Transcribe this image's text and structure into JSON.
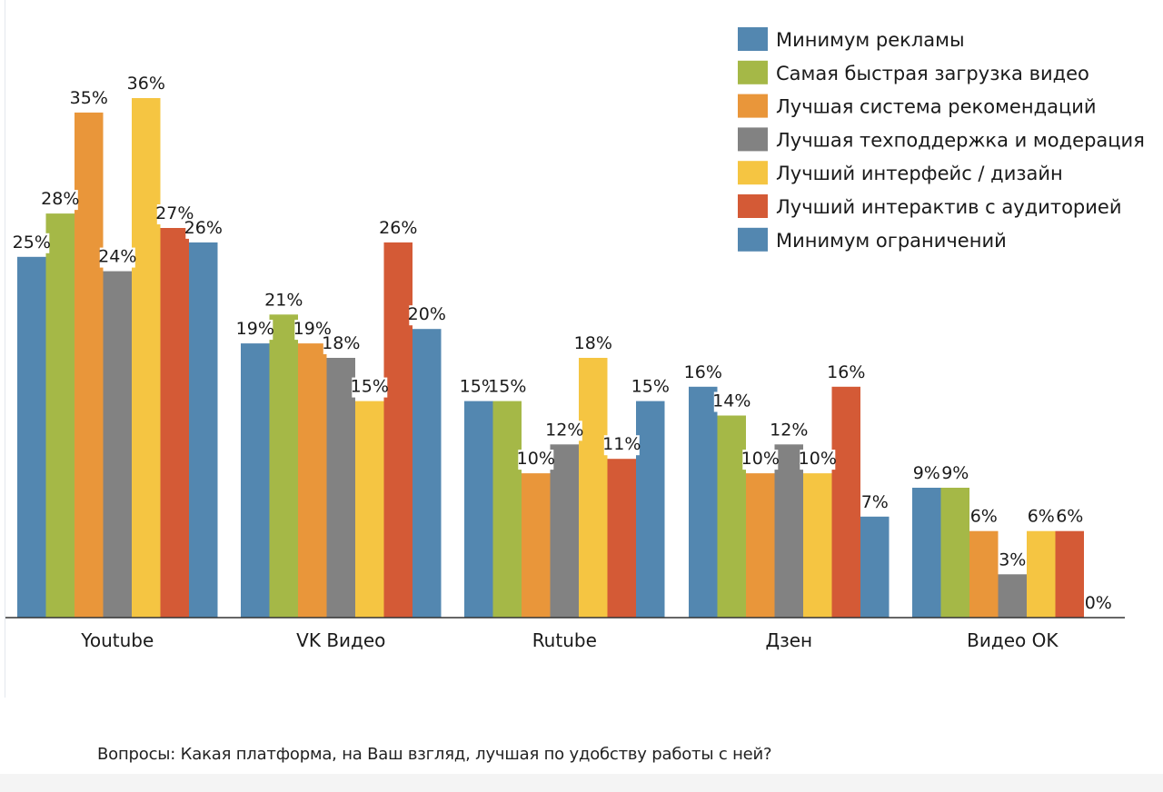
{
  "question": "Вопросы: Какая платформа, на Ваш взгляд, лучшая по удобству работы с ней?",
  "chart_data": {
    "type": "bar",
    "categories": [
      "Youtube",
      "VK Видео",
      "Rutube",
      "Дзен",
      "Видео OK"
    ],
    "ylim": [
      0,
      36
    ],
    "grid": false,
    "legend_position": "top-right",
    "series": [
      {
        "name": "Минимум рекламы",
        "color": "#5387b0",
        "values": [
          25,
          19,
          15,
          16,
          9
        ],
        "labels": [
          "25%",
          "19%",
          "15%",
          "16%",
          "9%"
        ]
      },
      {
        "name": "Самая быстрая загрузка видео",
        "color": "#a5b847",
        "values": [
          28,
          21,
          15,
          14,
          9
        ],
        "labels": [
          "28%",
          "21%",
          "15%",
          "14%",
          "9%"
        ]
      },
      {
        "name": "Лучшая система рекомендаций",
        "color": "#e9963a",
        "values": [
          35,
          19,
          10,
          10,
          6
        ],
        "labels": [
          "35%",
          "19%",
          "10%",
          "10%",
          "6%"
        ]
      },
      {
        "name": "Лучшая техподдержка и модерация",
        "color": "#828282",
        "values": [
          24,
          18,
          12,
          12,
          3
        ],
        "labels": [
          "24%",
          "18%",
          "12%",
          "12%",
          "3%"
        ]
      },
      {
        "name": "Лучший интерфейс / дизайн",
        "color": "#f5c542",
        "values": [
          36,
          15,
          18,
          10,
          6
        ],
        "labels": [
          "36%",
          "15%",
          "18%",
          "10%",
          "6%"
        ]
      },
      {
        "name": "Лучший интерактив с аудиторией",
        "color": "#d45a36",
        "values": [
          27,
          26,
          11,
          16,
          6
        ],
        "labels": [
          "27%",
          "26%",
          "11%",
          "16%",
          "6%"
        ]
      },
      {
        "name": "Минимум ограничений",
        "color": "#5387b0",
        "values": [
          26,
          20,
          15,
          7,
          0
        ],
        "labels": [
          "26%",
          "20%",
          "15%",
          "7%",
          "0%"
        ]
      }
    ]
  }
}
